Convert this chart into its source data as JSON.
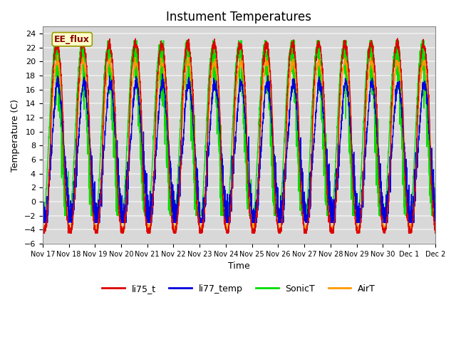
{
  "title": "Instument Temperatures",
  "xlabel": "Time",
  "ylabel": "Temperature (C)",
  "ylim": [
    -6,
    25
  ],
  "yticks": [
    -6,
    -4,
    -2,
    0,
    2,
    4,
    6,
    8,
    10,
    12,
    14,
    16,
    18,
    20,
    22,
    24
  ],
  "colors": {
    "li75_t": "#dd0000",
    "li77_temp": "#0000dd",
    "SonicT": "#00dd00",
    "AirT": "#ff9900"
  },
  "legend_labels": [
    "li75_t",
    "li77_temp",
    "SonicT",
    "AirT"
  ],
  "annotation_text": "EE_flux",
  "plot_bg_color": "#d8d8d8",
  "grid_color": "#f0f0f0",
  "title_fontsize": 12,
  "n_points": 3000
}
